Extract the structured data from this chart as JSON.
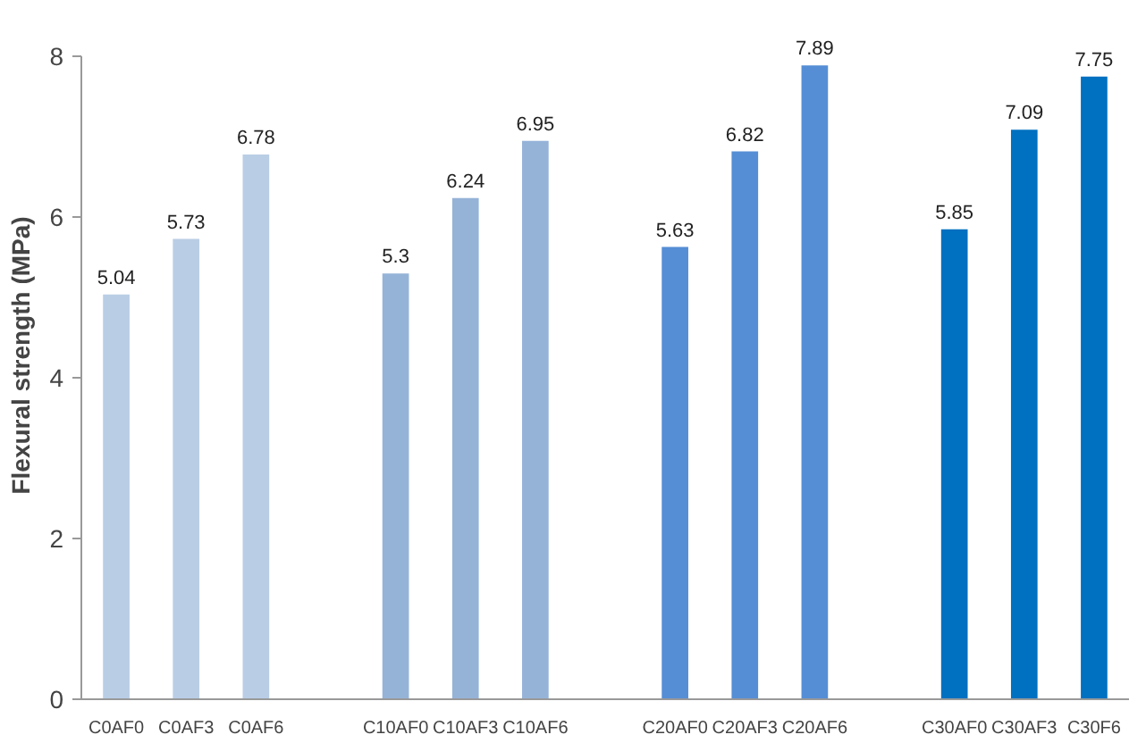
{
  "chart_data": {
    "type": "bar",
    "ylabel": "Flexural strength (MPa)",
    "categories": [
      "C0AF0",
      "C0AF3",
      "C0AF6",
      null,
      "C10AF0",
      "C10AF3",
      "C10AF6",
      null,
      "C20AF0",
      "C20AF3",
      "C20AF6",
      null,
      "C30AF0",
      "C30AF3",
      "C30F6"
    ],
    "values": [
      5.04,
      5.73,
      6.78,
      null,
      5.3,
      6.24,
      6.95,
      null,
      5.63,
      6.82,
      7.89,
      null,
      5.85,
      7.09,
      7.75
    ],
    "colors": [
      "#b9cde5",
      "#b9cde5",
      "#b9cde5",
      null,
      "#95b3d7",
      "#95b3d7",
      "#95b3d7",
      null,
      "#558ed5",
      "#558ed5",
      "#558ed5",
      null,
      "#0070c0",
      "#0070c0",
      "#0070c0"
    ],
    "ylim": [
      0,
      8
    ],
    "yticks": [
      0,
      2,
      4,
      6,
      8
    ],
    "data_labels": true,
    "grid": false
  }
}
